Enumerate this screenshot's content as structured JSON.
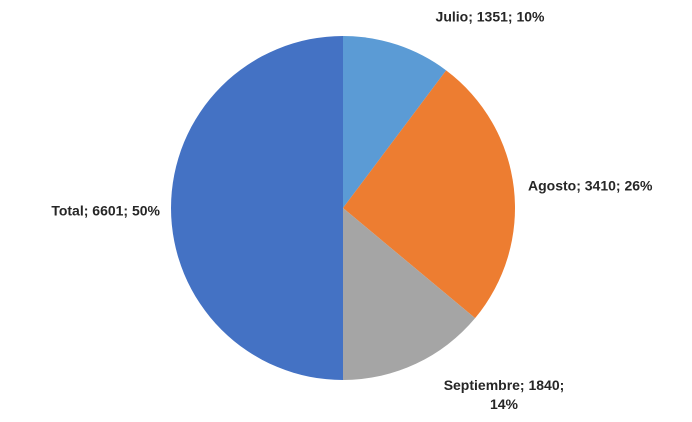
{
  "chart_data": {
    "type": "pie",
    "values": [
      1351,
      3410,
      1840,
      6601
    ],
    "value_labels": [
      "Julio; 1351; 10%",
      "Agosto; 3410; 26%",
      "Septiembre; 1840; 14%",
      "Total; 6601; 50%"
    ],
    "colors": [
      "#5b9bd5",
      "#ed7d31",
      "#a5a5a5",
      "#4472c4"
    ]
  }
}
